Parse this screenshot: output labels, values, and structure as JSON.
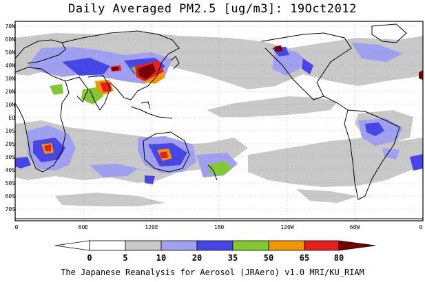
{
  "title": "Daily Averaged PM2.5 [ug/m3]: 19Oct2012",
  "footer": "The Japanese Reanalysis for Aerosol (JRAero) v1.0 MRI/KU_RIAM",
  "lat_labels": [
    "70N",
    "60N",
    "50N",
    "40N",
    "30N",
    "20N",
    "10N",
    "EQ",
    "10S",
    "20S",
    "30S",
    "40S",
    "50S",
    "60S",
    "70S"
  ],
  "lon_labels": [
    "0",
    "60E",
    "120E",
    "180",
    "120W",
    "60W",
    "0"
  ],
  "colorbar": {
    "bounds": [
      "0",
      "5",
      "10",
      "20",
      "35",
      "50",
      "65",
      "80"
    ],
    "colors": [
      "#ffffff",
      "#c8c8c8",
      "#a0a0f0",
      "#4646e6",
      "#82c832",
      "#f09600",
      "#e61e1e",
      "#780000"
    ]
  }
}
